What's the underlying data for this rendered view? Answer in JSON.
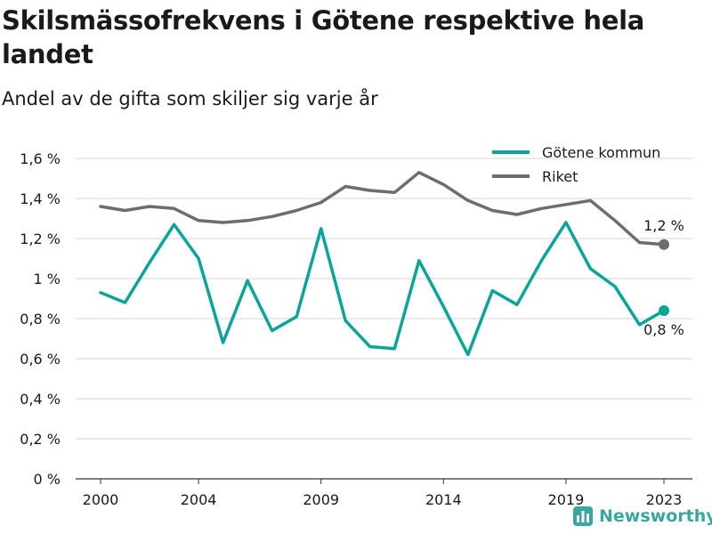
{
  "title": "Skilsmässofrekvens i Götene respektive hela landet",
  "subtitle": "Andel av de gifta som skiljer sig varje år",
  "brand": "Newsworthy",
  "colors": {
    "gotene": "#0aa597",
    "riket": "#6d6c72",
    "grid": "#d6d6d6",
    "text": "#1a1a1a",
    "brand": "#3aa6a0"
  },
  "chart_data": {
    "type": "line",
    "x": [
      2000,
      2001,
      2002,
      2003,
      2004,
      2005,
      2006,
      2007,
      2008,
      2009,
      2010,
      2011,
      2012,
      2013,
      2014,
      2015,
      2016,
      2017,
      2018,
      2019,
      2020,
      2021,
      2022,
      2023
    ],
    "x_ticks": [
      2000,
      2004,
      2009,
      2014,
      2019,
      2023
    ],
    "x_tick_labels": [
      "2000",
      "2004",
      "2009",
      "2014",
      "2019",
      "2023"
    ],
    "ylim": [
      0,
      1.6
    ],
    "y_ticks": [
      0,
      0.2,
      0.4,
      0.6,
      0.8,
      1.0,
      1.2,
      1.4,
      1.6
    ],
    "y_tick_labels": [
      "0 %",
      "0,2 %",
      "0,4 %",
      "0,6 %",
      "0,8 %",
      "1 %",
      "1,2 %",
      "1,4 %",
      "1,6 %"
    ],
    "grid": true,
    "legend_position": "top-right",
    "series": [
      {
        "name": "Götene kommun",
        "key": "gotene",
        "values": [
          0.93,
          0.88,
          1.08,
          1.27,
          1.1,
          0.68,
          0.99,
          0.74,
          0.81,
          1.25,
          0.79,
          0.66,
          0.65,
          1.09,
          0.86,
          0.62,
          0.94,
          0.87,
          1.09,
          1.28,
          1.05,
          0.96,
          0.77,
          0.84
        ],
        "end_label": "0,8 %",
        "end_label_pos": "below"
      },
      {
        "name": "Riket",
        "key": "riket",
        "values": [
          1.36,
          1.34,
          1.36,
          1.35,
          1.29,
          1.28,
          1.29,
          1.31,
          1.34,
          1.38,
          1.46,
          1.44,
          1.43,
          1.53,
          1.47,
          1.39,
          1.34,
          1.32,
          1.35,
          1.37,
          1.39,
          1.29,
          1.18,
          1.17
        ],
        "end_label": "1,2 %",
        "end_label_pos": "above"
      }
    ]
  }
}
